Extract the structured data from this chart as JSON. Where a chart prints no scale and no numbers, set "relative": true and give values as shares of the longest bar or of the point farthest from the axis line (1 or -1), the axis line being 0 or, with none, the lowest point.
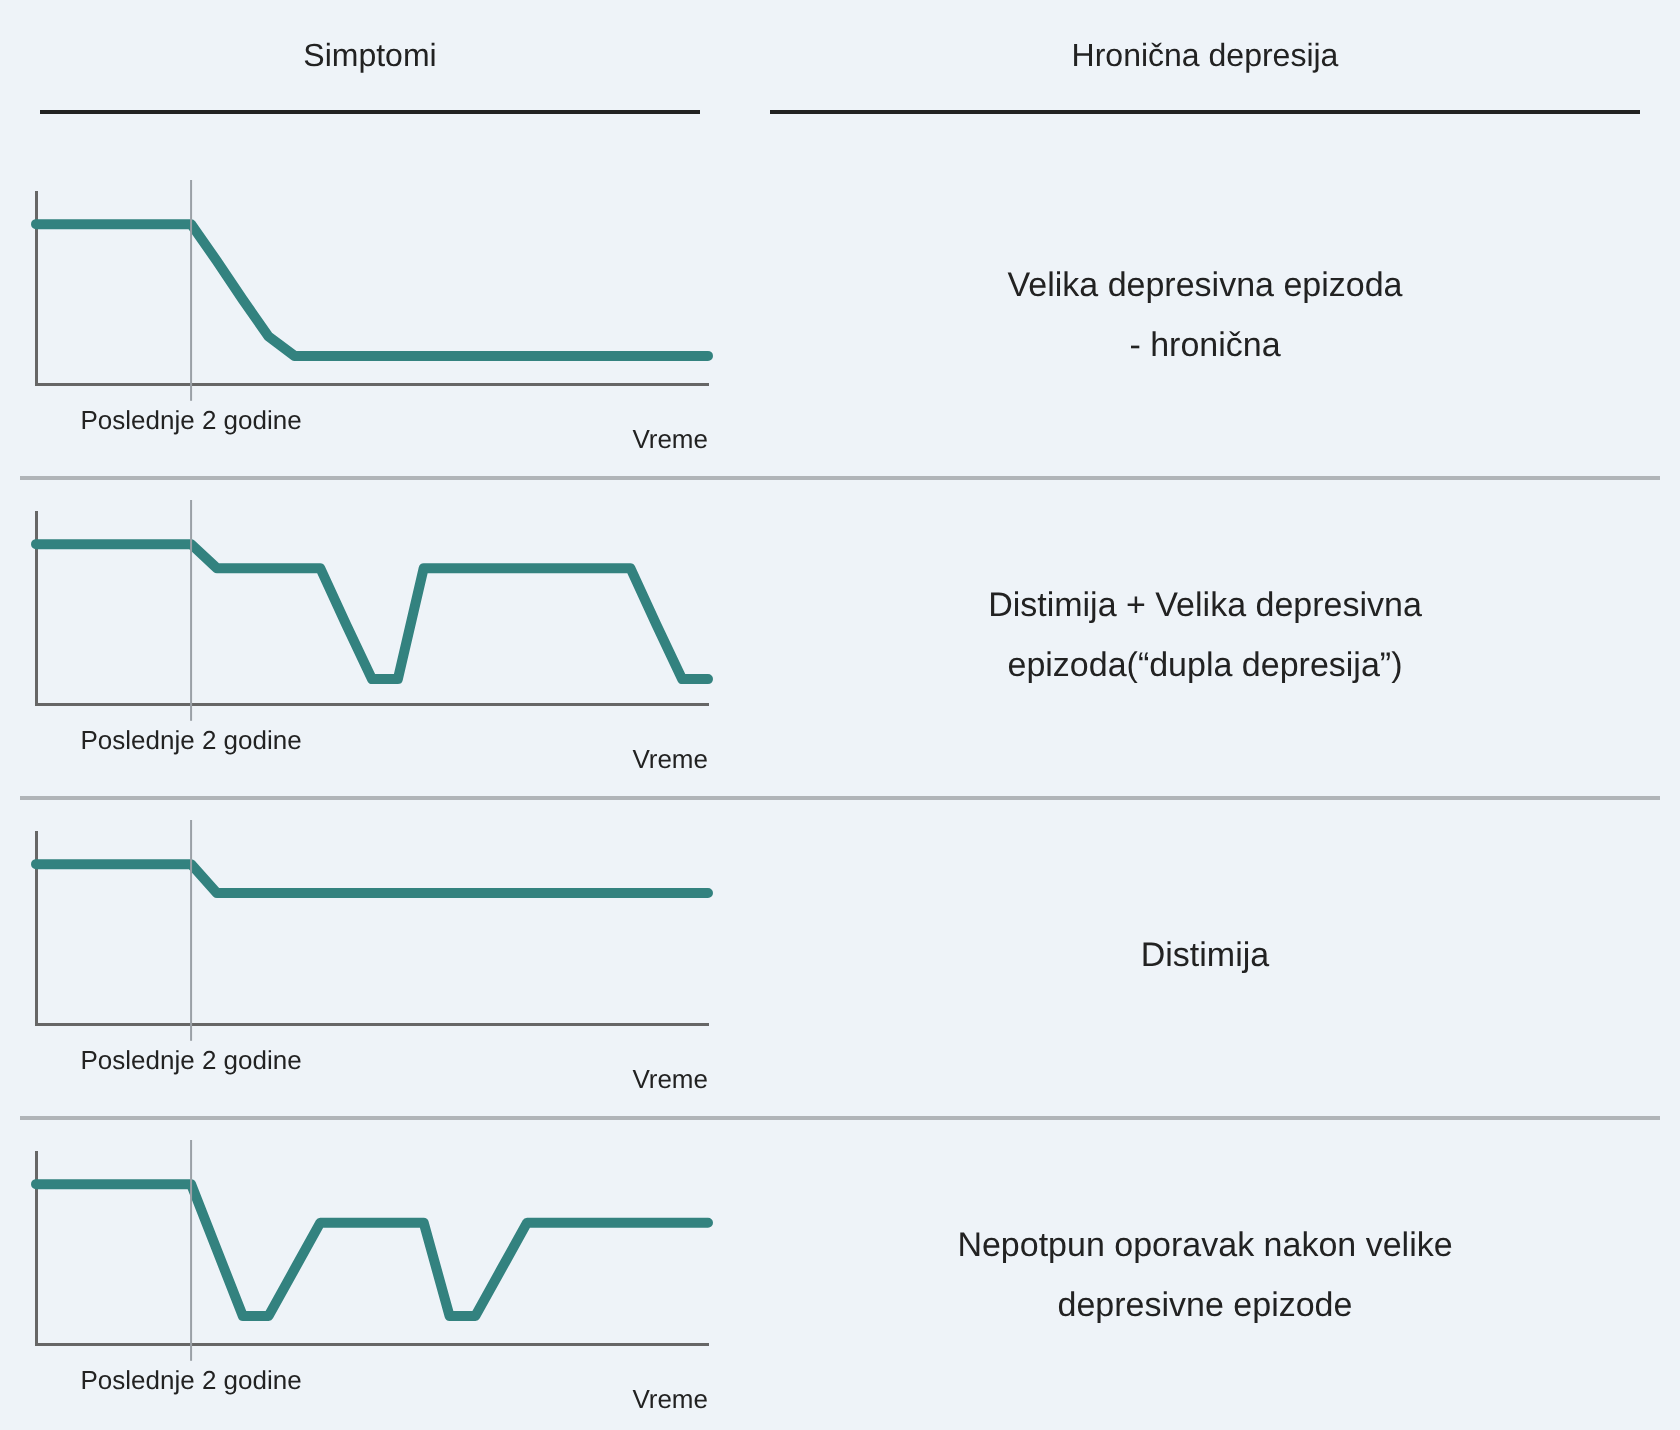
{
  "chart_data": [
    {
      "type": "other",
      "annotations": [
        "Simptomi",
        "Hronična depresija"
      ]
    },
    {
      "type": "line",
      "relative": true,
      "categories": [
        null,
        null,
        null,
        null,
        null,
        null,
        null,
        null,
        null,
        null,
        null,
        null,
        null,
        null,
        null,
        null,
        null,
        null,
        null,
        null,
        null,
        null,
        null,
        null,
        null,
        null,
        null
      ],
      "color": "#33827f",
      "values": [
        1,
        1,
        1,
        1,
        1,
        1,
        1,
        0.77,
        0.53,
        0.3,
        0.18,
        0.18,
        0.18,
        0.18,
        0.18,
        0.18,
        0.18,
        0.18,
        0.18,
        0.18,
        0.18,
        0.18,
        0.18,
        0.18,
        0.18,
        0.18,
        0.18
      ],
      "xlabel": "Vreme",
      "annotations": [
        "Poslednje 2 godine",
        "Velika depresivna epizoda\n- hronična"
      ]
    },
    {
      "type": "line",
      "relative": true,
      "categories": [
        null,
        null,
        null,
        null,
        null,
        null,
        null,
        null,
        null,
        null,
        null,
        null,
        null,
        null,
        null,
        null,
        null,
        null,
        null,
        null,
        null,
        null,
        null,
        null,
        null,
        null,
        null
      ],
      "color": "#33827f",
      "values": [
        1,
        1,
        1,
        1,
        1,
        1,
        1,
        0.85,
        0.85,
        0.85,
        0.85,
        0.85,
        0.5,
        0.16,
        0.16,
        0.85,
        0.85,
        0.85,
        0.85,
        0.85,
        0.85,
        0.85,
        0.85,
        0.85,
        0.5,
        0.16,
        0.16
      ],
      "xlabel": "Vreme",
      "annotations": [
        "Poslednje 2 godine",
        "Distimija + Velika depresivna\nepizoda(“dupla depresija”)"
      ]
    },
    {
      "type": "line",
      "relative": true,
      "categories": [
        null,
        null,
        null,
        null,
        null,
        null,
        null,
        null,
        null,
        null,
        null,
        null,
        null,
        null,
        null,
        null,
        null,
        null,
        null,
        null,
        null,
        null,
        null,
        null,
        null,
        null,
        null
      ],
      "color": "#33827f",
      "values": [
        1,
        1,
        1,
        1,
        1,
        1,
        1,
        0.82,
        0.82,
        0.82,
        0.82,
        0.82,
        0.82,
        0.82,
        0.82,
        0.82,
        0.82,
        0.82,
        0.82,
        0.82,
        0.82,
        0.82,
        0.82,
        0.82,
        0.82,
        0.82,
        0.82
      ],
      "xlabel": "Vreme",
      "annotations": [
        "Poslednje 2 godine",
        "Distimija"
      ]
    },
    {
      "type": "line",
      "relative": true,
      "categories": [
        null,
        null,
        null,
        null,
        null,
        null,
        null,
        null,
        null,
        null,
        null,
        null,
        null,
        null,
        null,
        null,
        null,
        null,
        null,
        null,
        null,
        null,
        null,
        null,
        null,
        null,
        null
      ],
      "color": "#33827f",
      "values": [
        1,
        1,
        1,
        1,
        1,
        1,
        1,
        0.59,
        0.18,
        0.18,
        0.47,
        0.76,
        0.76,
        0.76,
        0.76,
        0.76,
        0.18,
        0.18,
        0.47,
        0.76,
        0.76,
        0.76,
        0.76,
        0.76,
        0.76,
        0.76,
        0.76
      ],
      "xlabel": "Vreme",
      "annotations": [
        "Poslednje 2 godine",
        "Nepotpun oporavak nakon velike\ndepresivne epizode"
      ]
    }
  ]
}
